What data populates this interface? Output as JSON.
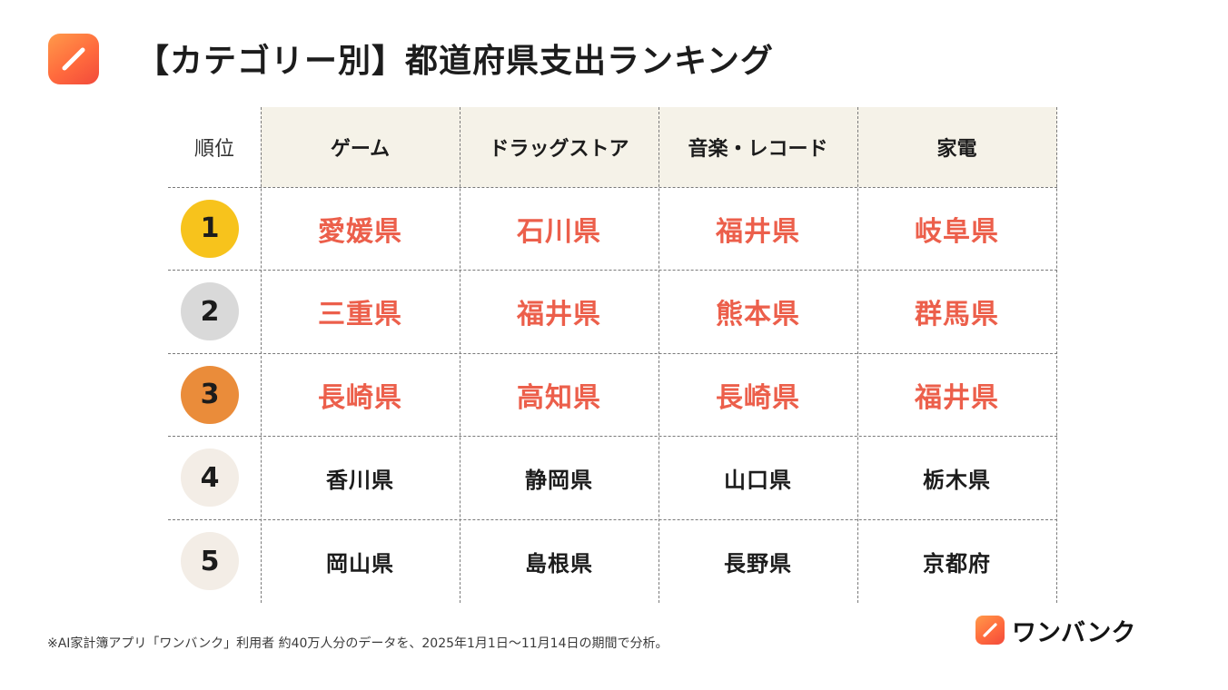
{
  "header": {
    "title": "【カテゴリー別】都道府県支出ランキング",
    "app_icon": "pencil-icon"
  },
  "table": {
    "rank_label": "順位",
    "columns": [
      "ゲーム",
      "ドラッグストア",
      "音楽・レコード",
      "家電"
    ],
    "rows": [
      {
        "rank": "1",
        "cells": [
          "愛媛県",
          "石川県",
          "福井県",
          "岐阜県"
        ]
      },
      {
        "rank": "2",
        "cells": [
          "三重県",
          "福井県",
          "熊本県",
          "群馬県"
        ]
      },
      {
        "rank": "3",
        "cells": [
          "長崎県",
          "高知県",
          "長崎県",
          "福井県"
        ]
      },
      {
        "rank": "4",
        "cells": [
          "香川県",
          "静岡県",
          "山口県",
          "栃木県"
        ]
      },
      {
        "rank": "5",
        "cells": [
          "岡山県",
          "島根県",
          "長野県",
          "京都府"
        ]
      }
    ]
  },
  "colors": {
    "highlight_text": "#ec5f4b",
    "header_bg": "#f5f2e8",
    "badge_1": "#f7c31c",
    "badge_2": "#d9d9d9",
    "badge_3": "#ea8c3a",
    "badge_other": "#f3ede6"
  },
  "footnote": "※AI家計簿アプリ「ワンバンク」利用者 約40万人分のデータを、2025年1月1日〜11月14日の期間で分析。",
  "brand": {
    "name": "ワンバンク",
    "icon": "pencil-icon"
  }
}
